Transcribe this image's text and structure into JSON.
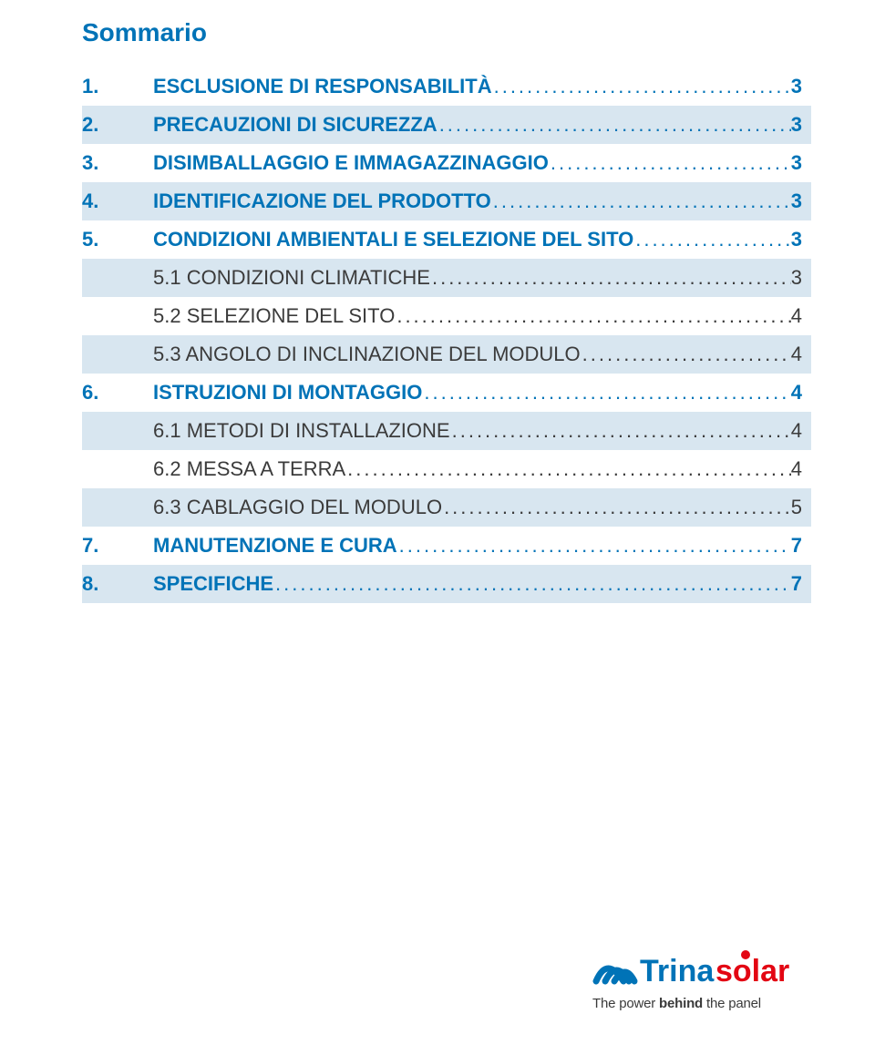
{
  "title": "Sommario",
  "toc": [
    {
      "type": "main",
      "alt": false,
      "num": "1.",
      "label": "ESCLUSIONE DI RESPONSABILITÀ",
      "page": "3"
    },
    {
      "type": "main",
      "alt": true,
      "num": "2.",
      "label": "PRECAUZIONI DI SICUREZZA",
      "page": "3"
    },
    {
      "type": "main",
      "alt": false,
      "num": "3.",
      "label": "DISIMBALLAGGIO E IMMAGAZZINAGGIO",
      "page": "3"
    },
    {
      "type": "main",
      "alt": true,
      "num": "4.",
      "label": "IDENTIFICAZIONE DEL PRODOTTO",
      "page": "3"
    },
    {
      "type": "main",
      "alt": false,
      "num": "5.",
      "label": "CONDIZIONI AMBIENTALI E SELEZIONE DEL SITO",
      "page": "3"
    },
    {
      "type": "sub",
      "alt": true,
      "num": "",
      "label": "5.1 CONDIZIONI CLIMATICHE",
      "page": "3"
    },
    {
      "type": "sub",
      "alt": false,
      "num": "",
      "label": "5.2 SELEZIONE DEL SITO",
      "page": "4"
    },
    {
      "type": "sub",
      "alt": true,
      "num": "",
      "label": "5.3 ANGOLO DI INCLINAZIONE DEL MODULO",
      "page": "4"
    },
    {
      "type": "main",
      "alt": false,
      "num": "6.",
      "label": "ISTRUZIONI DI MONTAGGIO",
      "page": "4"
    },
    {
      "type": "sub",
      "alt": true,
      "num": "",
      "label": "6.1 METODI DI INSTALLAZIONE",
      "page": "4"
    },
    {
      "type": "sub",
      "alt": false,
      "num": "",
      "label": "6.2 MESSA A TERRA",
      "page": "4"
    },
    {
      "type": "sub",
      "alt": true,
      "num": "",
      "label": "6.3 CABLAGGIO DEL MODULO",
      "page": "5"
    },
    {
      "type": "main",
      "alt": false,
      "num": "7.",
      "label": "MANUTENZIONE E CURA",
      "page": "7"
    },
    {
      "type": "main",
      "alt": true,
      "num": "8.",
      "label": "SPECIFICHE",
      "page": "7"
    }
  ],
  "logo": {
    "brand_blue": "#0073b7",
    "brand_red": "#e30613",
    "tagline_pre": "The power ",
    "tagline_bold": "behind",
    "tagline_post": " the panel"
  }
}
